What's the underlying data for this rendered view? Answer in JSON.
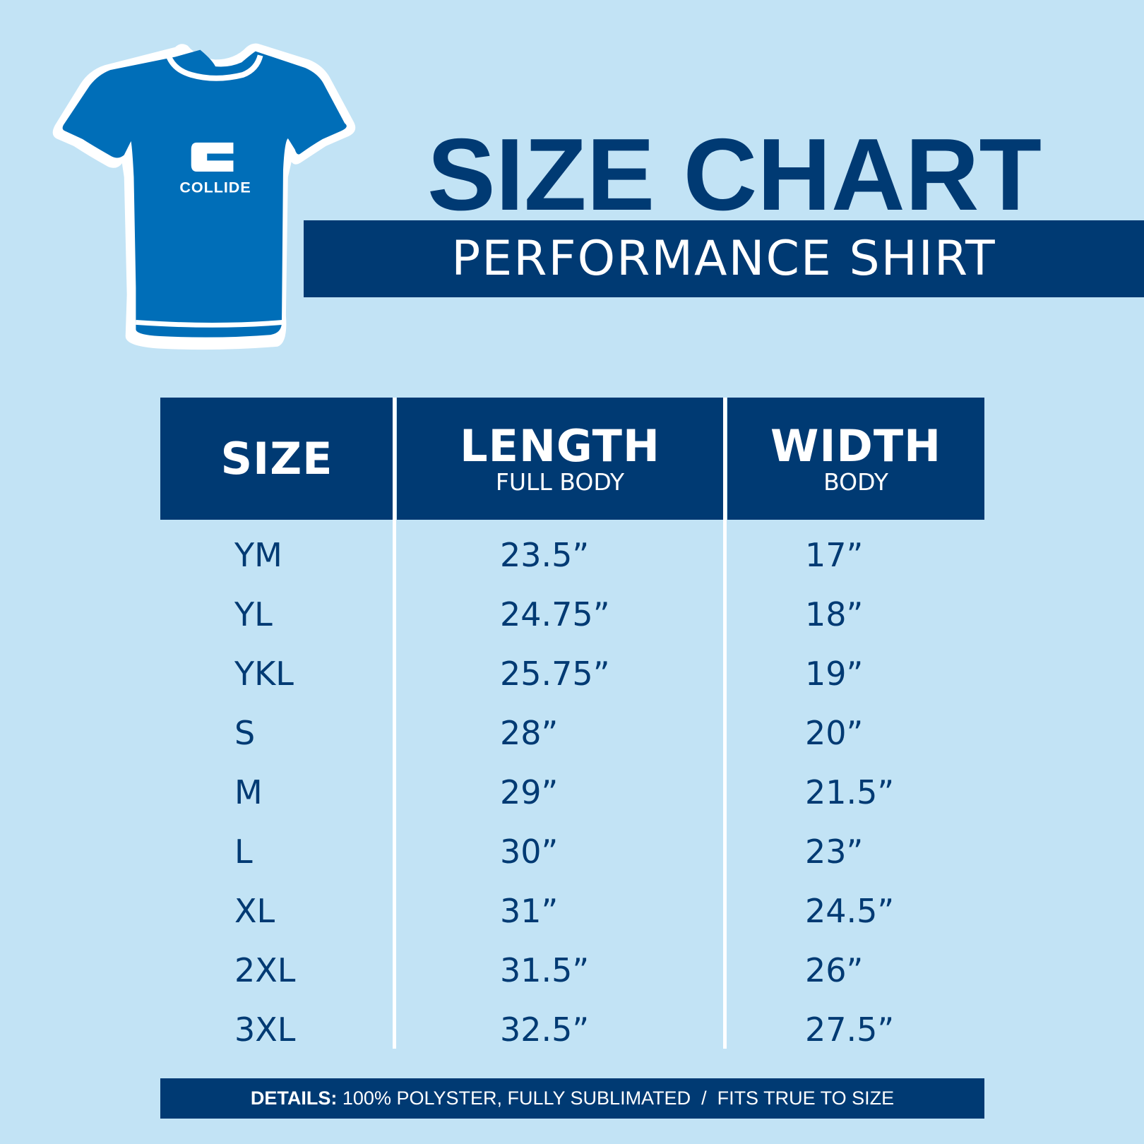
{
  "brand": {
    "logo_text": "COLLIDE"
  },
  "header": {
    "title": "SIZE CHART",
    "subtitle": "PERFORMANCE SHIRT"
  },
  "table": {
    "columns": [
      {
        "label": "SIZE",
        "sub": ""
      },
      {
        "label": "LENGTH",
        "sub": "FULL BODY"
      },
      {
        "label": "WIDTH",
        "sub": "BODY"
      }
    ],
    "rows": [
      [
        "YM",
        "23.5”",
        "17”"
      ],
      [
        "YL",
        "24.75”",
        "18”"
      ],
      [
        "YKL",
        "25.75”",
        "19”"
      ],
      [
        "S",
        "28”",
        "20”"
      ],
      [
        "M",
        "29”",
        "21.5”"
      ],
      [
        "L",
        "30”",
        "23”"
      ],
      [
        "XL",
        "31”",
        "24.5”"
      ],
      [
        "2XL",
        "31.5”",
        "26”"
      ],
      [
        "3XL",
        "32.5”",
        "27.5”"
      ]
    ]
  },
  "footer": {
    "label": "DETAILS:",
    "text": "100% POLYSTER, FULLY SUBLIMATED  /  FITS TRUE TO SIZE"
  },
  "colors": {
    "background": "#c2e3f5",
    "navy": "#003a73",
    "shirt": "#006eb8",
    "white": "#ffffff"
  }
}
